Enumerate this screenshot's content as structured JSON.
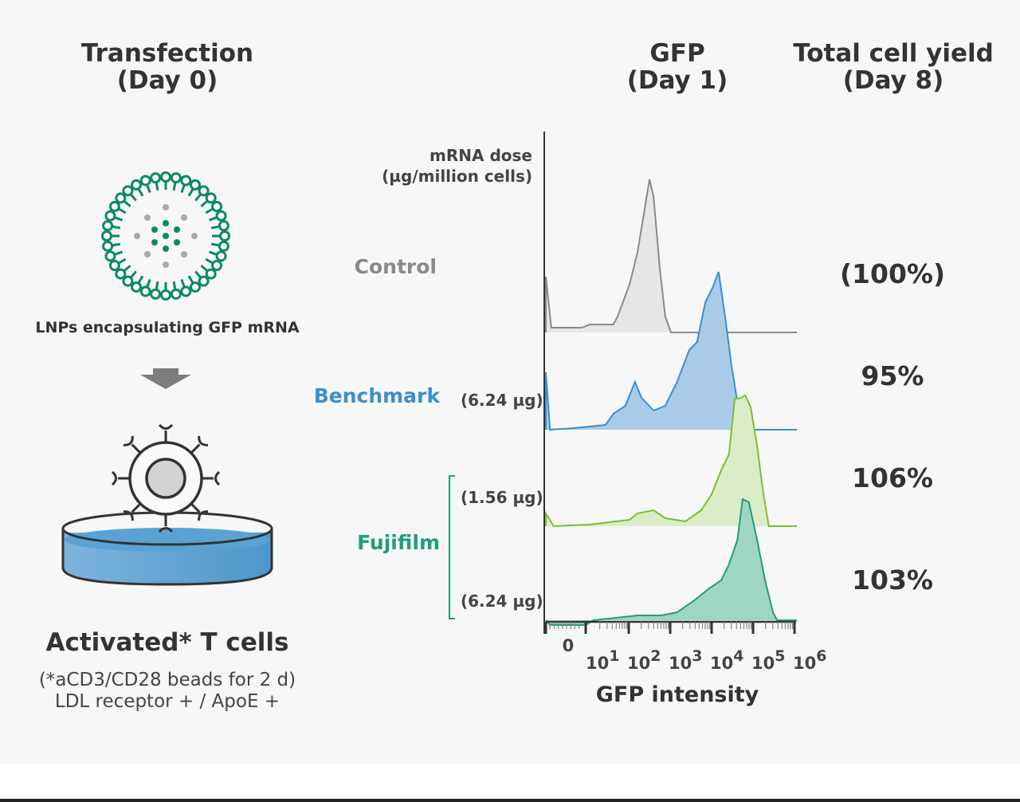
{
  "headers": {
    "transfection": [
      "Transfection",
      "(Day 0)"
    ],
    "gfp": [
      "GFP",
      "(Day 1)"
    ],
    "yield": [
      "Total cell yield",
      "(Day 8)"
    ]
  },
  "left": {
    "lnp_label": "LNPs encapsulating GFP mRNA",
    "cells_title": "Activated* T cells",
    "cells_note1": "(*aCD3/CD28 beads for 2 d)",
    "cells_note2": "LDL receptor + / ApoE +"
  },
  "dose_header": [
    "mRNA dose",
    "(µg/million cells)"
  ],
  "groups": {
    "control": "Control",
    "benchmark": "Benchmark",
    "fujifilm": "Fujifilm"
  },
  "doses": [
    "(6.24 µg)",
    "(1.56 µg)",
    "(6.24 µg)"
  ],
  "yields": [
    "(100%)",
    "95%",
    "106%",
    "103%"
  ],
  "colors": {
    "control": "#8a8a8a",
    "benchmark": "#3a8fd0",
    "fujifilm_low": "#7cbf2f",
    "fujifilm_high": "#1f9e7e",
    "lnp": "#0b8a64"
  },
  "chart_data": {
    "type": "area",
    "xlabel": "GFP intensity",
    "x_scale": "biexponential (decades)",
    "xlim": [
      0,
      6.06
    ],
    "tick_labels": [
      {
        "base": "0",
        "exp": "",
        "at": 0.55
      },
      {
        "base": "10",
        "exp": "1",
        "at": 1
      },
      {
        "base": "10",
        "exp": "2",
        "at": 2
      },
      {
        "base": "10",
        "exp": "3",
        "at": 3
      },
      {
        "base": "10",
        "exp": "4",
        "at": 4
      },
      {
        "base": "10",
        "exp": "5",
        "at": 5
      },
      {
        "base": "10",
        "exp": "6",
        "at": 6
      }
    ],
    "series": [
      {
        "name": "Control",
        "dose": "",
        "color": "#8a8a8a",
        "fill": "#e6e6e6",
        "points": [
          [
            0,
            0
          ],
          [
            0,
            0.35
          ],
          [
            0.13,
            0.03
          ],
          [
            0.87,
            0.03
          ],
          [
            1.06,
            0.05
          ],
          [
            1.63,
            0.05
          ],
          [
            1.73,
            0.1
          ],
          [
            2.02,
            0.3
          ],
          [
            2.21,
            0.5
          ],
          [
            2.37,
            0.75
          ],
          [
            2.5,
            0.96
          ],
          [
            2.6,
            0.85
          ],
          [
            2.75,
            0.4
          ],
          [
            2.88,
            0.1
          ],
          [
            3.02,
            0
          ],
          [
            6.06,
            0
          ]
        ]
      },
      {
        "name": "Benchmark",
        "dose": "6.24 µg",
        "color": "#3a8fd0",
        "fill": "#a9cbe8",
        "points": [
          [
            0,
            0
          ],
          [
            0,
            0.36
          ],
          [
            0.1,
            0
          ],
          [
            0.67,
            0.01
          ],
          [
            1.44,
            0.03
          ],
          [
            1.63,
            0.1
          ],
          [
            1.92,
            0.15
          ],
          [
            2.15,
            0.3
          ],
          [
            2.31,
            0.2
          ],
          [
            2.6,
            0.12
          ],
          [
            2.88,
            0.15
          ],
          [
            3.17,
            0.3
          ],
          [
            3.46,
            0.5
          ],
          [
            3.65,
            0.55
          ],
          [
            3.85,
            0.8
          ],
          [
            4.04,
            0.9
          ],
          [
            4.17,
            0.99
          ],
          [
            4.33,
            0.7
          ],
          [
            4.48,
            0.4
          ],
          [
            4.67,
            0.1
          ],
          [
            5.0,
            0
          ],
          [
            6.06,
            0
          ]
        ]
      },
      {
        "name": "Fujifilm",
        "dose": "1.56 µg",
        "color": "#7cbf2f",
        "fill": "#dcecc8",
        "points": [
          [
            0,
            0
          ],
          [
            0,
            0.08
          ],
          [
            0.19,
            0
          ],
          [
            1.06,
            0.01
          ],
          [
            2.02,
            0.04
          ],
          [
            2.21,
            0.08
          ],
          [
            2.6,
            0.1
          ],
          [
            2.88,
            0.05
          ],
          [
            3.37,
            0.03
          ],
          [
            3.75,
            0.1
          ],
          [
            4.0,
            0.2
          ],
          [
            4.23,
            0.35
          ],
          [
            4.42,
            0.45
          ],
          [
            4.56,
            0.8
          ],
          [
            4.67,
            0.8
          ],
          [
            4.81,
            0.82
          ],
          [
            4.94,
            0.75
          ],
          [
            5.1,
            0.5
          ],
          [
            5.25,
            0.2
          ],
          [
            5.38,
            0
          ],
          [
            6.06,
            0
          ]
        ]
      },
      {
        "name": "Fujifilm",
        "dose": "6.24 µg",
        "color": "#1f9e7e",
        "fill": "#9ed6c3",
        "points": [
          [
            0,
            0
          ],
          [
            0.1,
            -0.03
          ],
          [
            0.96,
            -0.03
          ],
          [
            1.15,
            0
          ],
          [
            2.21,
            0.03
          ],
          [
            2.79,
            0.03
          ],
          [
            3.17,
            0.05
          ],
          [
            3.56,
            0.12
          ],
          [
            3.94,
            0.2
          ],
          [
            4.23,
            0.25
          ],
          [
            4.42,
            0.35
          ],
          [
            4.62,
            0.5
          ],
          [
            4.75,
            0.76
          ],
          [
            4.9,
            0.74
          ],
          [
            5.1,
            0.5
          ],
          [
            5.29,
            0.25
          ],
          [
            5.48,
            0.05
          ],
          [
            5.58,
            0
          ],
          [
            6.06,
            0
          ]
        ]
      }
    ]
  }
}
